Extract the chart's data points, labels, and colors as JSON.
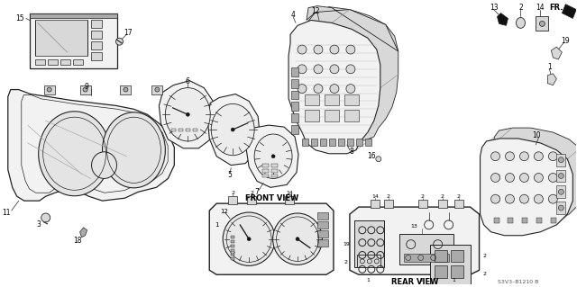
{
  "background_color": "#ffffff",
  "fig_width": 6.4,
  "fig_height": 3.19,
  "dpi": 100,
  "labels": {
    "front_view": "FRONT VIEW",
    "rear_view": "REAR VIEW",
    "part_number": "S3V3–B1210 B",
    "fr_label": "FR."
  },
  "line_color": "#222222",
  "fill_light": "#f2f2f2",
  "fill_mid": "#d8d8d8",
  "fill_dark": "#aaaaaa",
  "fill_black": "#111111"
}
